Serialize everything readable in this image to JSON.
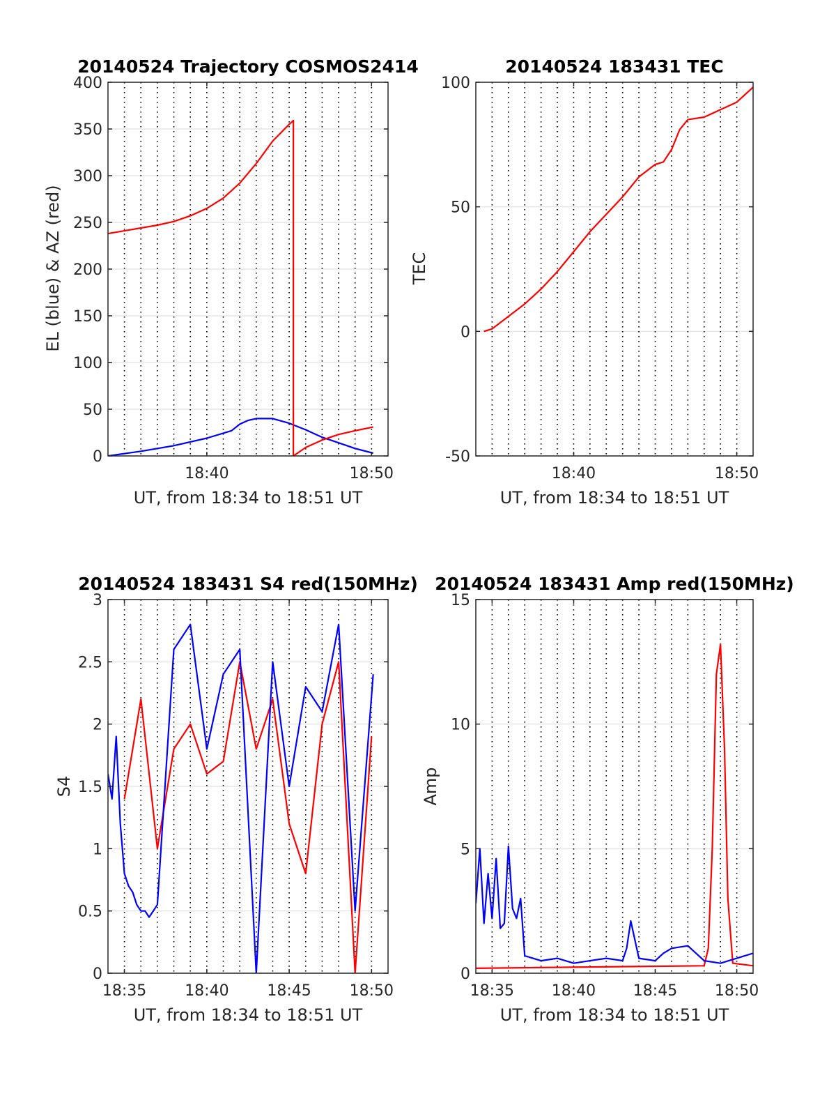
{
  "figure": {
    "background": "#ffffff"
  },
  "chart_data": [
    {
      "id": "trajectory",
      "type": "line",
      "title": "20140524 Trajectory COSMOS2414",
      "xlabel": "UT, from 18:34 to 18:51 UT",
      "ylabel": "EL (blue) & AZ (red)",
      "xlim": [
        18.5667,
        18.85
      ],
      "ylim": [
        0,
        400
      ],
      "yticks": [
        0,
        50,
        100,
        150,
        200,
        250,
        300,
        350,
        400
      ],
      "xticks": [
        {
          "value": 18.6667,
          "label": "18:40"
        },
        {
          "value": 18.8333,
          "label": "18:50"
        }
      ],
      "grid": true,
      "vgrid_dotted_every_min": 1,
      "series": [
        {
          "color": "#0000ff",
          "x": [
            18.5667,
            18.6,
            18.6333,
            18.6667,
            18.6917,
            18.7,
            18.7083,
            18.7167,
            18.7333,
            18.75,
            18.7667,
            18.7833,
            18.8,
            18.8167,
            18.835
          ],
          "y": [
            0,
            5,
            11,
            19,
            27,
            34,
            38,
            40,
            40,
            35,
            28,
            20,
            14,
            8,
            3
          ]
        },
        {
          "color": "#ff0000",
          "x": [
            18.5667,
            18.5833,
            18.6,
            18.6167,
            18.6333,
            18.65,
            18.6667,
            18.6833,
            18.7,
            18.7167,
            18.7333,
            18.75,
            18.7542,
            18.7542,
            18.7667,
            18.7833,
            18.8,
            18.8167,
            18.835
          ],
          "y": [
            238,
            241,
            244,
            247,
            251,
            257,
            265,
            276,
            292,
            313,
            337,
            355,
            359,
            0,
            9,
            17,
            23,
            27,
            31
          ]
        }
      ]
    },
    {
      "id": "tec",
      "type": "line",
      "title": "20140524 183431 TEC",
      "xlabel": "UT, from 18:34 to 18:51 UT",
      "ylabel": "TEC",
      "xlim": [
        18.5667,
        18.85
      ],
      "ylim": [
        -50,
        100
      ],
      "yticks": [
        -50,
        0,
        50,
        100
      ],
      "xticks": [
        {
          "value": 18.6667,
          "label": "18:40"
        },
        {
          "value": 18.8333,
          "label": "18:50"
        }
      ],
      "grid": true,
      "vgrid_dotted_every_min": 1,
      "series": [
        {
          "color": "#ff0000",
          "x": [
            18.575,
            18.5833,
            18.6,
            18.6167,
            18.6333,
            18.65,
            18.6667,
            18.6833,
            18.7,
            18.7167,
            18.7333,
            18.75,
            18.7583,
            18.7667,
            18.775,
            18.7833,
            18.8,
            18.8167,
            18.8333,
            18.85
          ],
          "y": [
            0,
            1,
            6,
            11,
            17,
            24,
            32,
            40,
            47,
            54,
            62,
            67,
            68,
            73,
            81,
            85,
            86,
            89,
            92,
            98
          ]
        }
      ]
    },
    {
      "id": "s4",
      "type": "line",
      "title": "20140524 183431 S4 red(150MHz)",
      "xlabel": "UT, from 18:34 to 18:51 UT",
      "ylabel": "S4",
      "xlim": [
        18.5667,
        18.85
      ],
      "ylim": [
        0,
        3
      ],
      "yticks": [
        0,
        0.5,
        1,
        1.5,
        2,
        2.5,
        3
      ],
      "ytick_labels": [
        "0",
        "0.5",
        "1",
        "1.5",
        "2",
        "2.5",
        "3"
      ],
      "xticks": [
        {
          "value": 18.5833,
          "label": "18:35"
        },
        {
          "value": 18.6667,
          "label": "18:40"
        },
        {
          "value": 18.75,
          "label": "18:45"
        },
        {
          "value": 18.8333,
          "label": "18:50"
        }
      ],
      "grid": true,
      "vgrid_dotted_every_min": 1,
      "series": [
        {
          "color": "#ff0000",
          "x": [
            18.5833,
            18.6,
            18.6167,
            18.6333,
            18.65,
            18.6667,
            18.6833,
            18.7,
            18.7167,
            18.7333,
            18.75,
            18.7667,
            18.7833,
            18.8,
            18.8167,
            18.8333
          ],
          "y": [
            1.4,
            2.2,
            1.0,
            1.8,
            2.0,
            1.6,
            1.7,
            2.5,
            1.8,
            2.2,
            1.2,
            0.8,
            2.0,
            2.5,
            0.0,
            1.9
          ]
        },
        {
          "color": "#0000ff",
          "x": [
            18.5667,
            18.5708,
            18.575,
            18.5792,
            18.5833,
            18.5875,
            18.5917,
            18.5958,
            18.6,
            18.6042,
            18.6083,
            18.6125,
            18.6167,
            18.6333,
            18.65,
            18.6667,
            18.6833,
            18.7,
            18.7167,
            18.7333,
            18.75,
            18.7667,
            18.7833,
            18.8,
            18.8167,
            18.835
          ],
          "y": [
            1.6,
            1.4,
            1.9,
            1.2,
            0.8,
            0.7,
            0.65,
            0.55,
            0.5,
            0.5,
            0.45,
            0.5,
            0.55,
            2.6,
            2.8,
            1.8,
            2.4,
            2.6,
            0.0,
            2.5,
            1.5,
            2.3,
            2.1,
            2.8,
            0.5,
            2.4
          ]
        }
      ]
    },
    {
      "id": "amp",
      "type": "line",
      "title": "20140524 183431 Amp red(150MHz)",
      "xlabel": "UT, from 18:34 to 18:51 UT",
      "ylabel": "Amp",
      "xlim": [
        18.5667,
        18.85
      ],
      "ylim": [
        0,
        15
      ],
      "yticks": [
        0,
        5,
        10,
        15
      ],
      "xticks": [
        {
          "value": 18.5833,
          "label": "18:35"
        },
        {
          "value": 18.6667,
          "label": "18:40"
        },
        {
          "value": 18.75,
          "label": "18:45"
        },
        {
          "value": 18.8333,
          "label": "18:50"
        }
      ],
      "grid": true,
      "vgrid_dotted_every_min": 1,
      "series": [
        {
          "color": "#ff0000",
          "x": [
            18.5667,
            18.8,
            18.8042,
            18.8083,
            18.8125,
            18.8167,
            18.8208,
            18.8242,
            18.8292,
            18.85
          ],
          "y": [
            0.2,
            0.3,
            1.0,
            5.0,
            12.0,
            13.2,
            9.0,
            3.0,
            0.4,
            0.3
          ]
        },
        {
          "color": "#0000ff",
          "x": [
            18.5667,
            18.5708,
            18.575,
            18.5792,
            18.5833,
            18.5875,
            18.5917,
            18.5958,
            18.6,
            18.6042,
            18.6083,
            18.6125,
            18.6167,
            18.6333,
            18.65,
            18.6667,
            18.6833,
            18.7,
            18.7167,
            18.7208,
            18.725,
            18.7333,
            18.75,
            18.7583,
            18.7667,
            18.7833,
            18.8,
            18.8167,
            18.8333,
            18.85
          ],
          "y": [
            2.8,
            5.0,
            2.0,
            4.0,
            2.2,
            4.6,
            1.8,
            2.0,
            5.1,
            2.6,
            2.2,
            3.0,
            0.7,
            0.5,
            0.6,
            0.4,
            0.5,
            0.6,
            0.5,
            1.0,
            2.1,
            0.6,
            0.5,
            0.8,
            1.0,
            1.1,
            0.5,
            0.4,
            0.6,
            0.8
          ]
        }
      ]
    }
  ]
}
